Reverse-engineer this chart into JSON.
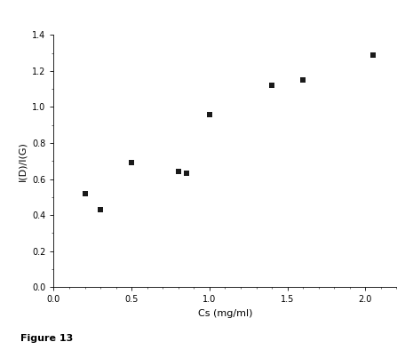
{
  "x": [
    0.2,
    0.3,
    0.5,
    0.8,
    0.85,
    1.0,
    1.4,
    1.6,
    2.05
  ],
  "y": [
    0.52,
    0.43,
    0.69,
    0.64,
    0.63,
    0.96,
    1.12,
    1.15,
    1.29
  ],
  "xlabel": "Cs (mg/ml)",
  "ylabel": "I(D)/I(G)",
  "xlim": [
    0.0,
    2.2
  ],
  "ylim": [
    0.0,
    1.4
  ],
  "xticks": [
    0.0,
    0.5,
    1.0,
    1.5,
    2.0
  ],
  "yticks": [
    0.0,
    0.2,
    0.4,
    0.6,
    0.8,
    1.0,
    1.2,
    1.4
  ],
  "xtick_labels": [
    "0.0",
    "0.5",
    "1.0",
    "1.5",
    "2.0"
  ],
  "ytick_labels": [
    "0.0",
    "0.2",
    "0.4",
    "0.6",
    "0.8",
    "1.0",
    "1.2",
    "1.4"
  ],
  "caption": "Figure 13",
  "marker": "s",
  "marker_size": 4,
  "marker_color": "#1a1a1a",
  "figure_size": [
    4.65,
    3.94
  ],
  "dpi": 100
}
